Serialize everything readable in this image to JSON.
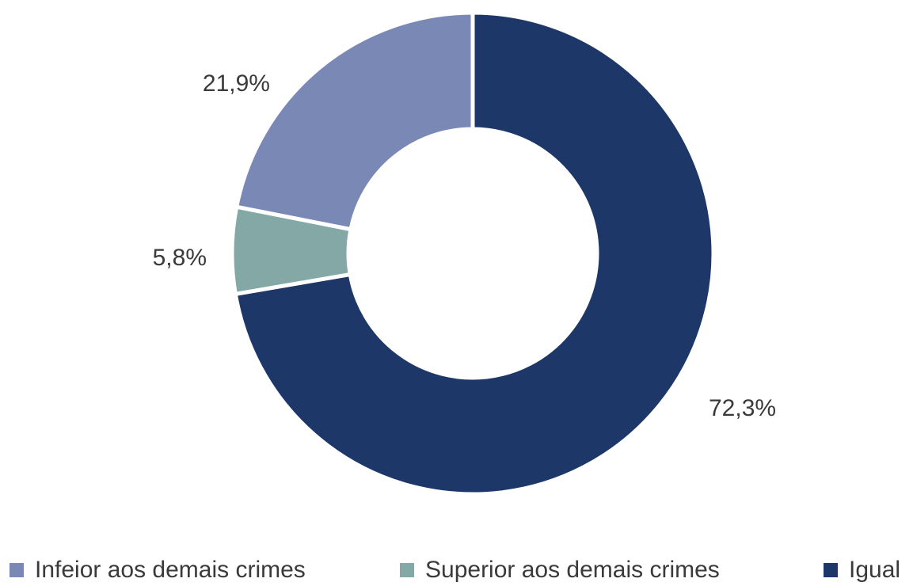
{
  "chart_data": {
    "type": "pie",
    "donut": true,
    "title": "",
    "start_angle_deg": 0,
    "direction": "clockwise",
    "slices": [
      {
        "name": "Igual",
        "label": "72,3%",
        "value": 72.3,
        "color": "#1d3868"
      },
      {
        "name": "Superior aos demais crimes",
        "label": "5,8%",
        "value": 5.8,
        "color": "#84a8a5"
      },
      {
        "name": "Infeior aos demais crimes",
        "label": "21,9%",
        "value": 21.9,
        "color": "#7a88b5"
      }
    ],
    "legend": {
      "placement": "bottom",
      "order": [
        "Infeior aos demais crimes",
        "Superior aos demais crimes",
        "Igual"
      ]
    }
  }
}
